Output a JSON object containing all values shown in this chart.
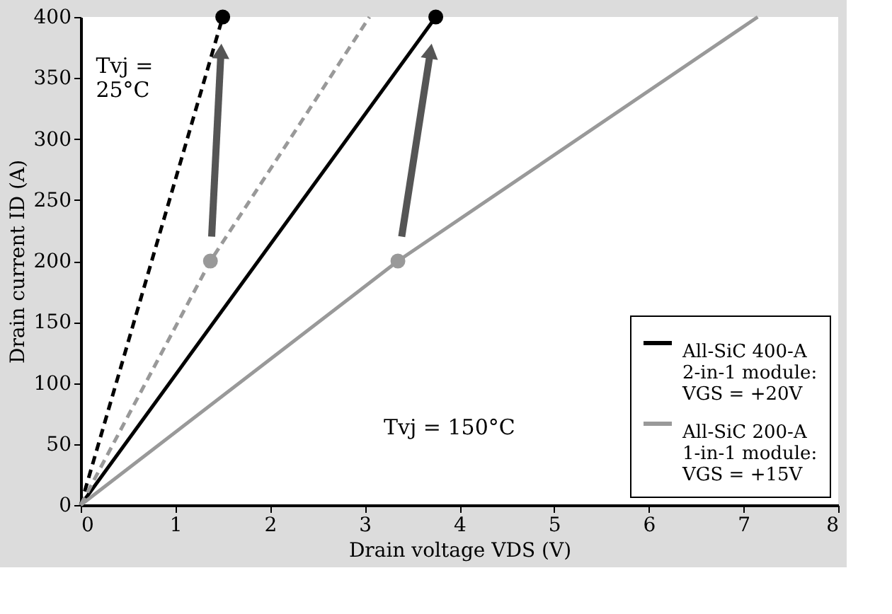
{
  "chart_data": {
    "type": "line",
    "xlabel": "Drain voltage VDS (V)",
    "ylabel": "Drain current ID (A)",
    "xlim": [
      0,
      8
    ],
    "ylim": [
      0,
      400
    ],
    "xticks": [
      0,
      1,
      2,
      3,
      4,
      5,
      6,
      7,
      8
    ],
    "yticks": [
      0,
      50,
      100,
      150,
      200,
      250,
      300,
      350,
      400
    ],
    "grid": false,
    "legend": "bottom right",
    "series": [
      {
        "name": "All-SiC 400-A\n2-in-1 module:\nVGS = +20V",
        "color": "#000000",
        "line_style": "solid",
        "x": [
          0,
          3.75
        ],
        "values": [
          0,
          400
        ]
      },
      {
        "color": "#000000",
        "line_style": "dashed",
        "x": [
          0,
          1.5
        ],
        "values": [
          0,
          400
        ]
      },
      {
        "name": "All-SiC 200-A\n1-in-1 module:\nVGS = +15V",
        "color": "#999999",
        "line_style": "solid",
        "x": [
          0,
          3.35,
          7.15
        ],
        "values": [
          0,
          200,
          400
        ]
      },
      {
        "color": "#999999",
        "line_style": "dashed",
        "x": [
          0,
          1.37,
          3.05
        ],
        "values": [
          0,
          200,
          400
        ]
      },
      {
        "type": "scatter",
        "color": "#000000",
        "marker": "circle",
        "x": [
          1.5,
          3.75
        ],
        "values": [
          400,
          400
        ]
      },
      {
        "type": "scatter",
        "color": "#999999",
        "marker": "circle",
        "x": [
          1.37,
          3.35
        ],
        "values": [
          200,
          200
        ]
      }
    ],
    "annotations": [
      "Tvj =\n25°C",
      "Tvj = 150°C"
    ]
  }
}
